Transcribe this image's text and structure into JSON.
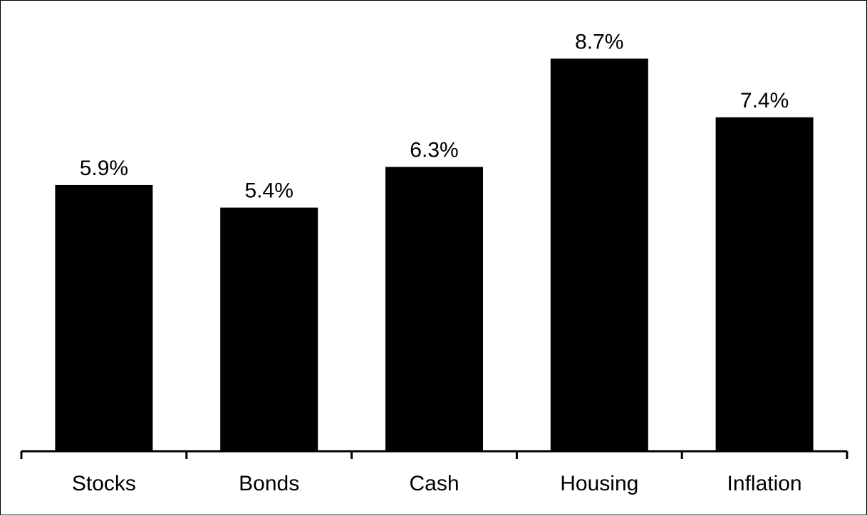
{
  "chart_data": {
    "type": "bar",
    "categories": [
      "Stocks",
      "Bonds",
      "Cash",
      "Housing",
      "Inflation"
    ],
    "values": [
      5.9,
      5.4,
      6.3,
      8.7,
      7.4
    ],
    "value_labels": [
      "5.9%",
      "5.4%",
      "6.3%",
      "8.7%",
      "7.4%"
    ],
    "title": "",
    "xlabel": "",
    "ylabel": "",
    "ylim": [
      0,
      10
    ],
    "grid": false,
    "legend": "none",
    "bar_color": "#000000"
  }
}
